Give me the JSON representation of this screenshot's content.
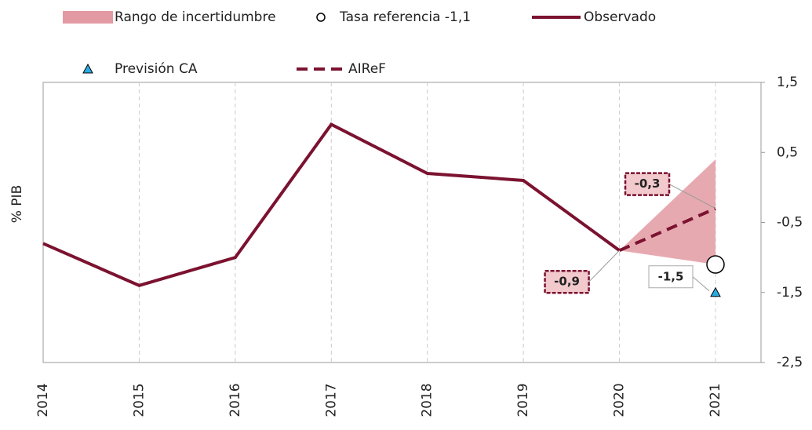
{
  "chart_data": {
    "type": "line",
    "y_label": "% PIB",
    "categories": [
      "2014",
      "2015",
      "2016",
      "2017",
      "2018",
      "2019",
      "2020",
      "2021"
    ],
    "ylim": [
      -2.5,
      1.5
    ],
    "yticks": [
      {
        "value": 1.5,
        "label": "1,5"
      },
      {
        "value": 0.5,
        "label": "0,5"
      },
      {
        "value": -0.5,
        "label": "-0,5"
      },
      {
        "value": -1.5,
        "label": "-1,5"
      },
      {
        "value": -2.5,
        "label": "-2,5"
      }
    ],
    "grid": true,
    "series": [
      {
        "name": "Rango de incertidumbre",
        "kind": "range",
        "color": "#e39aa2",
        "low": [
          null,
          null,
          null,
          null,
          null,
          null,
          -0.9,
          -1.1
        ],
        "high": [
          null,
          null,
          null,
          null,
          null,
          null,
          -0.9,
          0.4
        ]
      },
      {
        "name": "Tasa referencia -1,1",
        "kind": "circle",
        "color": "#000000",
        "values": [
          null,
          null,
          null,
          null,
          null,
          null,
          null,
          -1.1
        ]
      },
      {
        "name": "Observado",
        "kind": "line",
        "color": "#7b1230",
        "values": [
          -0.8,
          -1.4,
          -1.0,
          0.9,
          0.2,
          0.1,
          -0.9,
          null
        ]
      },
      {
        "name": "Previsión CA",
        "kind": "triangle",
        "color": "#29abe2",
        "values": [
          null,
          null,
          null,
          null,
          null,
          null,
          null,
          -1.5
        ],
        "value_labels": [
          null,
          null,
          null,
          null,
          null,
          null,
          null,
          "-1,5"
        ]
      },
      {
        "name": "AIReF",
        "kind": "dashed",
        "color": "#7b1230",
        "values": [
          null,
          null,
          null,
          null,
          null,
          null,
          -0.9,
          -0.3
        ],
        "value_labels": [
          null,
          null,
          null,
          null,
          null,
          null,
          "-0,9",
          "-0,3"
        ]
      }
    ]
  }
}
